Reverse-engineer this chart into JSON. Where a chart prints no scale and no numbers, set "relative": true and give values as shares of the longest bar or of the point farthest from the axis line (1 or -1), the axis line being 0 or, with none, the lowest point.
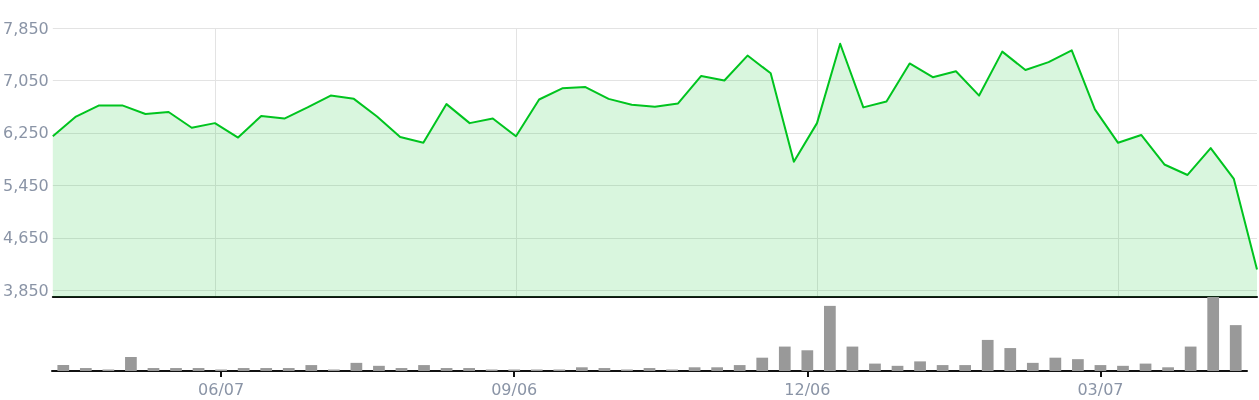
{
  "chart_data": [
    {
      "type": "area",
      "color": "#00c41f",
      "grid": true,
      "tick_labels": "y",
      "ylim": [
        3750,
        7850
      ],
      "yticks": [
        {
          "value": 3850,
          "label": "3,850"
        },
        {
          "value": 4650,
          "label": "4,650"
        },
        {
          "value": 5450,
          "label": "5,450"
        },
        {
          "value": 6250,
          "label": "6,250"
        },
        {
          "value": 7050,
          "label": "7,050"
        },
        {
          "value": 7850,
          "label": "7,850"
        }
      ],
      "categories": [
        null,
        null,
        null,
        null,
        null,
        null,
        null,
        null,
        null,
        null,
        null,
        null,
        null,
        null,
        null,
        null,
        null,
        null,
        null,
        null,
        null,
        null,
        null,
        null,
        null,
        null,
        null,
        null,
        null,
        null,
        null,
        null,
        null,
        null,
        null,
        null,
        null,
        null,
        null,
        null,
        null,
        null,
        null,
        null,
        null,
        null,
        null,
        null,
        null,
        null,
        null,
        null,
        null
      ],
      "values": [
        6200,
        6500,
        6670,
        6670,
        6540,
        6570,
        6330,
        6400,
        6180,
        6510,
        6470,
        6640,
        6820,
        6770,
        6500,
        6190,
        6100,
        6690,
        6400,
        6470,
        6200,
        6760,
        6930,
        6950,
        6770,
        6680,
        6650,
        6700,
        7120,
        7050,
        7430,
        7160,
        5810,
        6400,
        7610,
        6640,
        6730,
        7310,
        7100,
        7190,
        6820,
        7490,
        7210,
        7330,
        7510,
        6610,
        6100,
        6220,
        5770,
        5610,
        6020,
        5550,
        4170
      ]
    },
    {
      "type": "bar",
      "color": "#999999",
      "relative": true,
      "tick_labels": "x",
      "categories": [
        null,
        null,
        null,
        null,
        null,
        null,
        null,
        "06/07",
        null,
        null,
        null,
        null,
        null,
        null,
        null,
        null,
        null,
        null,
        null,
        null,
        "09/06",
        null,
        null,
        null,
        null,
        null,
        null,
        null,
        null,
        null,
        null,
        null,
        null,
        "12/06",
        null,
        null,
        null,
        null,
        null,
        null,
        null,
        null,
        null,
        null,
        null,
        null,
        "03/07",
        null,
        null,
        null,
        null,
        null,
        null
      ],
      "values": [
        0.08,
        0.04,
        0.02,
        0.19,
        0.04,
        0.04,
        0.04,
        0.02,
        0.04,
        0.04,
        0.04,
        0.08,
        0.02,
        0.11,
        0.07,
        0.04,
        0.08,
        0.04,
        0.04,
        0.02,
        0.02,
        0.02,
        0.02,
        0.05,
        0.04,
        0.02,
        0.04,
        0.02,
        0.05,
        0.05,
        0.08,
        0.18,
        0.33,
        0.28,
        0.88,
        0.33,
        0.1,
        0.07,
        0.13,
        0.08,
        0.08,
        0.42,
        0.31,
        0.11,
        0.18,
        0.16,
        0.08,
        0.07,
        0.1,
        0.05,
        0.33,
        1,
        0.62
      ]
    }
  ]
}
